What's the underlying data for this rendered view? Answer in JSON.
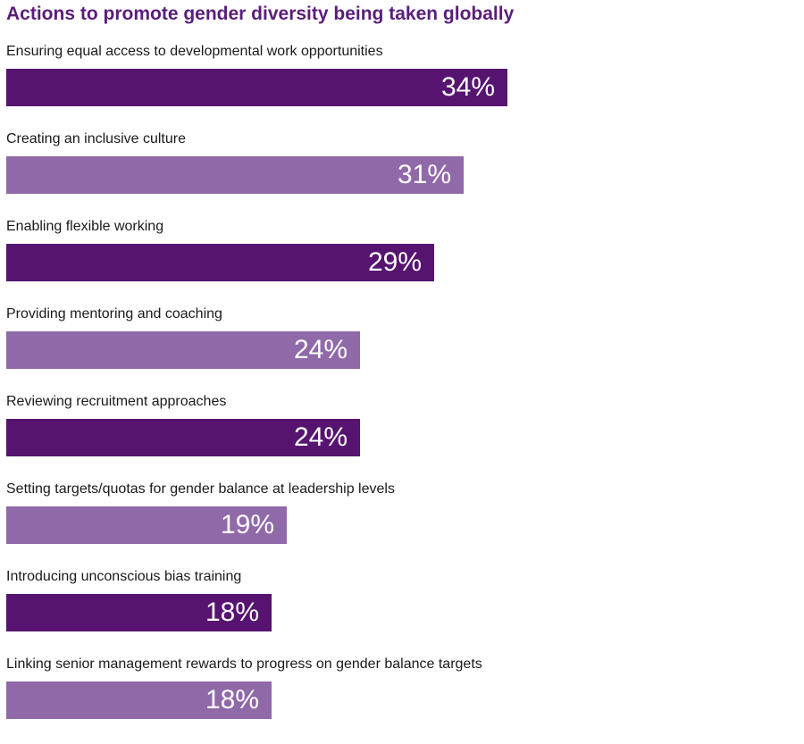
{
  "chart_data": {
    "type": "bar",
    "orientation": "horizontal",
    "title": "Actions to promote gender diversity being taken globally",
    "categories": [
      "Ensuring equal access to developmental work opportunities",
      "Creating an inclusive culture",
      "Enabling flexible working",
      "Providing mentoring and coaching",
      "Reviewing recruitment approaches",
      "Setting targets/quotas for gender balance at leadership levels",
      "Introducing unconscious bias training",
      "Linking senior management rewards to progress on gender balance targets"
    ],
    "values": [
      34,
      31,
      29,
      24,
      24,
      19,
      18,
      18
    ],
    "value_labels": [
      "34%",
      "31%",
      "29%",
      "24%",
      "24%",
      "19%",
      "18%",
      "18%"
    ],
    "unit": "%",
    "xlim": [
      0,
      100
    ],
    "grid": false,
    "bar_colors": [
      "#561470",
      "#9069a9"
    ],
    "title_color": "#5a1e7a",
    "value_label_color": "#ffffff"
  }
}
